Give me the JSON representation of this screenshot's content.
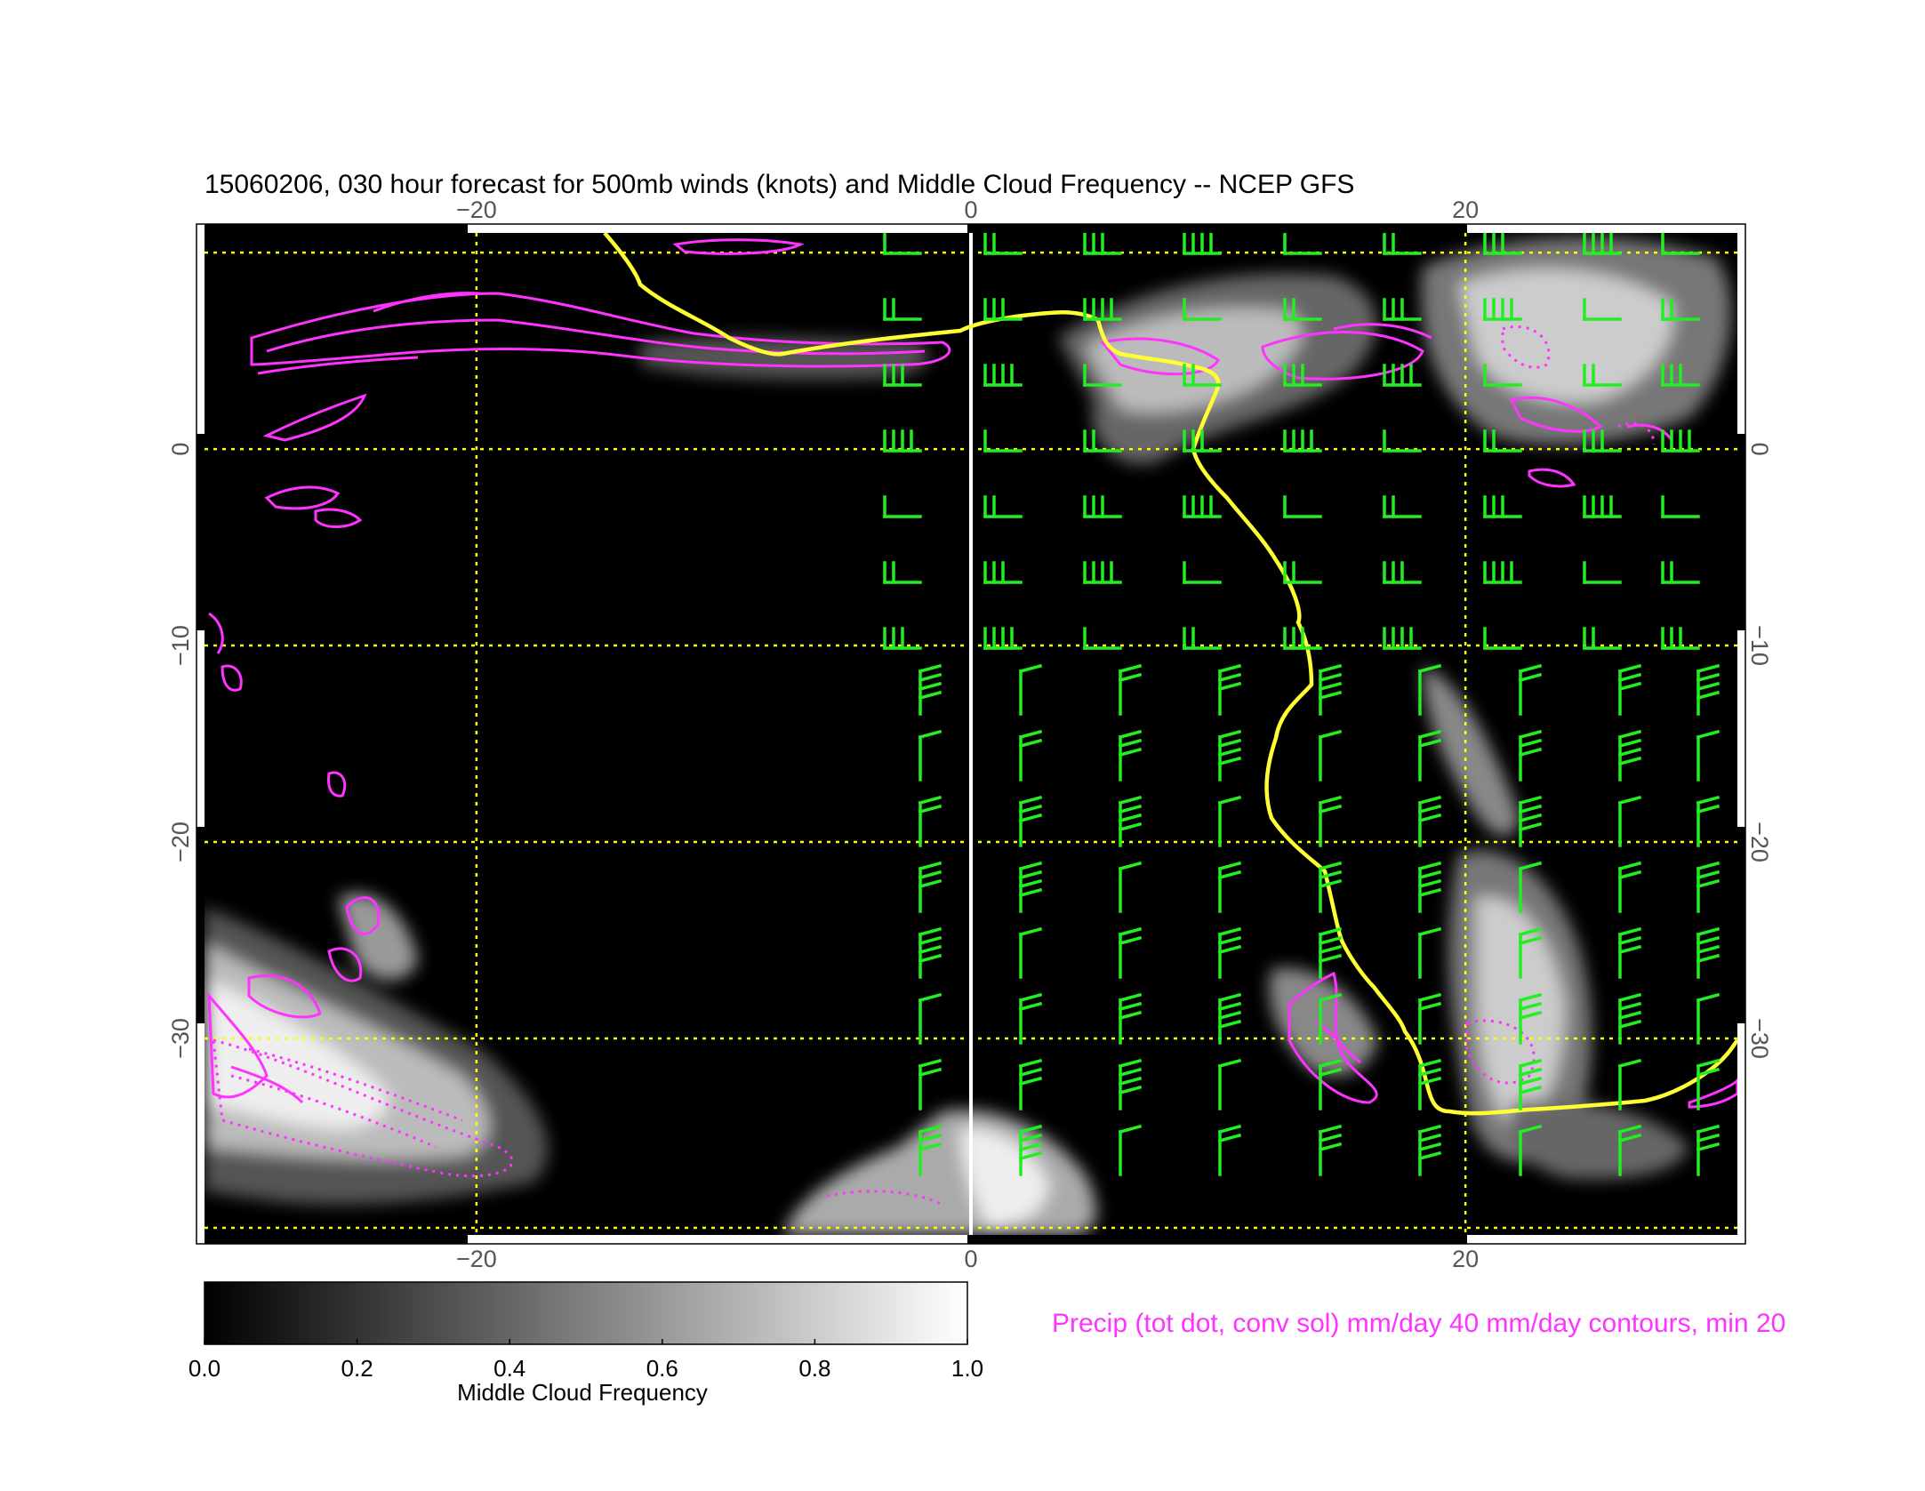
{
  "title": "15060206, 030 hour forecast for 500mb winds (knots) and Middle Cloud Frequency -- NCEP GFS",
  "map": {
    "lon_range": [
      -31,
      31
    ],
    "lat_range": [
      -40,
      11
    ],
    "lon_ticks": [
      {
        "value": -20,
        "label": "−20"
      },
      {
        "value": 0,
        "label": "0"
      },
      {
        "value": 20,
        "label": "20"
      }
    ],
    "lat_ticks": [
      {
        "value": 0,
        "label": "0"
      },
      {
        "value": -10,
        "label": "−10"
      },
      {
        "value": -20,
        "label": "−20"
      },
      {
        "value": -30,
        "label": "−30"
      }
    ],
    "grid_lons": [
      -20,
      0,
      20
    ],
    "grid_lats": [
      10,
      0,
      -10,
      -20,
      -30,
      -40
    ],
    "colors": {
      "background": "#000000",
      "grid": "#ffff00",
      "coastline": "#ffff33",
      "precip": "#ff33ff",
      "barbs": "#22ee22",
      "meridian": "#ffffff"
    }
  },
  "colorbar": {
    "label": "Middle Cloud Frequency",
    "ticks": [
      "0.0",
      "0.2",
      "0.4",
      "0.6",
      "0.8",
      "1.0"
    ],
    "range": [
      0,
      1
    ]
  },
  "precip_note": "Precip (tot dot, conv sol) mm/day 40 mm/day contours, min 20"
}
